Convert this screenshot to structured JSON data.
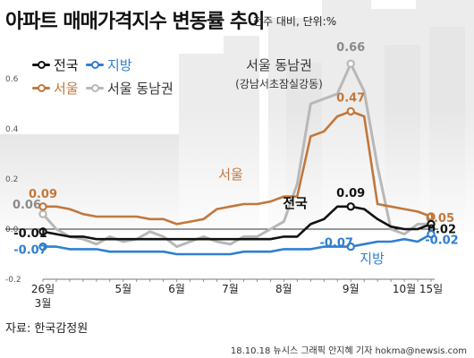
{
  "header": {
    "title": "아파트 매매가격지수 변동률 추이",
    "subtitle": "전주 대비, 단위:%"
  },
  "legend": [
    {
      "key": "nat",
      "label": "전국",
      "color": "#111111"
    },
    {
      "key": "reg",
      "label": "지방",
      "color": "#2f7fd0"
    },
    {
      "key": "seo",
      "label": "서울",
      "color": "#c2773b"
    },
    {
      "key": "gn",
      "label": "서울 동남권",
      "color": "#b8b8b8"
    }
  ],
  "footer": {
    "source": "자료: 한국감정원",
    "credit": "18.10.18 뉴시스 그래픽 안지혜 기자 hokma@newsis.com"
  },
  "chart_data": {
    "type": "line",
    "ylim": [
      -0.2,
      0.7
    ],
    "y_ticks": [
      "0.6",
      "0.4",
      "0.2",
      "0.0",
      "-0.2"
    ],
    "x_labels": [
      {
        "label": "26일",
        "sub": "3월",
        "index": 0
      },
      {
        "label": "5월",
        "index": 6
      },
      {
        "label": "6월",
        "index": 10
      },
      {
        "label": "7월",
        "index": 14
      },
      {
        "label": "8월",
        "index": 18
      },
      {
        "label": "9월",
        "index": 23
      },
      {
        "label": "10월",
        "index": 27
      },
      {
        "label": "15일",
        "index": 29
      }
    ],
    "series": [
      {
        "key": "gn",
        "name": "서울 동남권",
        "color": "#b8b8b8",
        "inline_label": "서울 동남권",
        "inline_sublabel": "(강남서초잠실강동)",
        "values": [
          0.06,
          0.0,
          -0.03,
          -0.04,
          -0.06,
          -0.03,
          -0.05,
          -0.04,
          -0.01,
          -0.03,
          -0.07,
          -0.05,
          -0.03,
          -0.05,
          -0.06,
          -0.03,
          -0.03,
          0.0,
          0.03,
          0.18,
          0.5,
          0.52,
          0.54,
          0.66,
          0.55,
          0.25,
          0.0,
          -0.02,
          0.02,
          0.02
        ],
        "labels": [
          {
            "index": 0,
            "text": "0.06"
          },
          {
            "index": 23,
            "text": "0.66"
          }
        ]
      },
      {
        "key": "seo",
        "name": "서울",
        "color": "#c2773b",
        "inline_label": "서울",
        "values": [
          0.09,
          0.09,
          0.08,
          0.06,
          0.05,
          0.05,
          0.05,
          0.05,
          0.04,
          0.04,
          0.02,
          0.03,
          0.04,
          0.08,
          0.09,
          0.1,
          0.1,
          0.11,
          0.13,
          0.13,
          0.37,
          0.39,
          0.45,
          0.47,
          0.45,
          0.1,
          0.09,
          0.08,
          0.07,
          0.05
        ],
        "labels": [
          {
            "index": 0,
            "text": "0.09"
          },
          {
            "index": 23,
            "text": "0.47"
          },
          {
            "index": 29,
            "text": "0.05"
          }
        ]
      },
      {
        "key": "nat",
        "name": "전국",
        "color": "#111111",
        "inline_label": "전국",
        "values": [
          -0.01,
          -0.02,
          -0.03,
          -0.03,
          -0.04,
          -0.04,
          -0.04,
          -0.04,
          -0.04,
          -0.04,
          -0.04,
          -0.04,
          -0.04,
          -0.04,
          -0.04,
          -0.04,
          -0.04,
          -0.04,
          -0.03,
          -0.03,
          0.02,
          0.04,
          0.09,
          0.09,
          0.08,
          0.04,
          0.01,
          0.0,
          0.0,
          0.02
        ],
        "labels": [
          {
            "index": 0,
            "text": "-0.01"
          },
          {
            "index": 23,
            "text": "0.09"
          },
          {
            "index": 29,
            "text": "0.02"
          }
        ]
      },
      {
        "key": "reg",
        "name": "지방",
        "color": "#2f7fd0",
        "inline_label": "지방",
        "values": [
          -0.07,
          -0.07,
          -0.08,
          -0.08,
          -0.08,
          -0.09,
          -0.09,
          -0.09,
          -0.09,
          -0.09,
          -0.1,
          -0.1,
          -0.1,
          -0.1,
          -0.1,
          -0.09,
          -0.09,
          -0.09,
          -0.08,
          -0.08,
          -0.08,
          -0.07,
          -0.07,
          -0.07,
          -0.06,
          -0.05,
          -0.05,
          -0.04,
          -0.05,
          -0.02
        ],
        "labels": [
          {
            "index": 0,
            "text": "-0.07"
          },
          {
            "index": 23,
            "text": "-0.07"
          },
          {
            "index": 29,
            "text": "-0.02"
          }
        ]
      }
    ]
  }
}
